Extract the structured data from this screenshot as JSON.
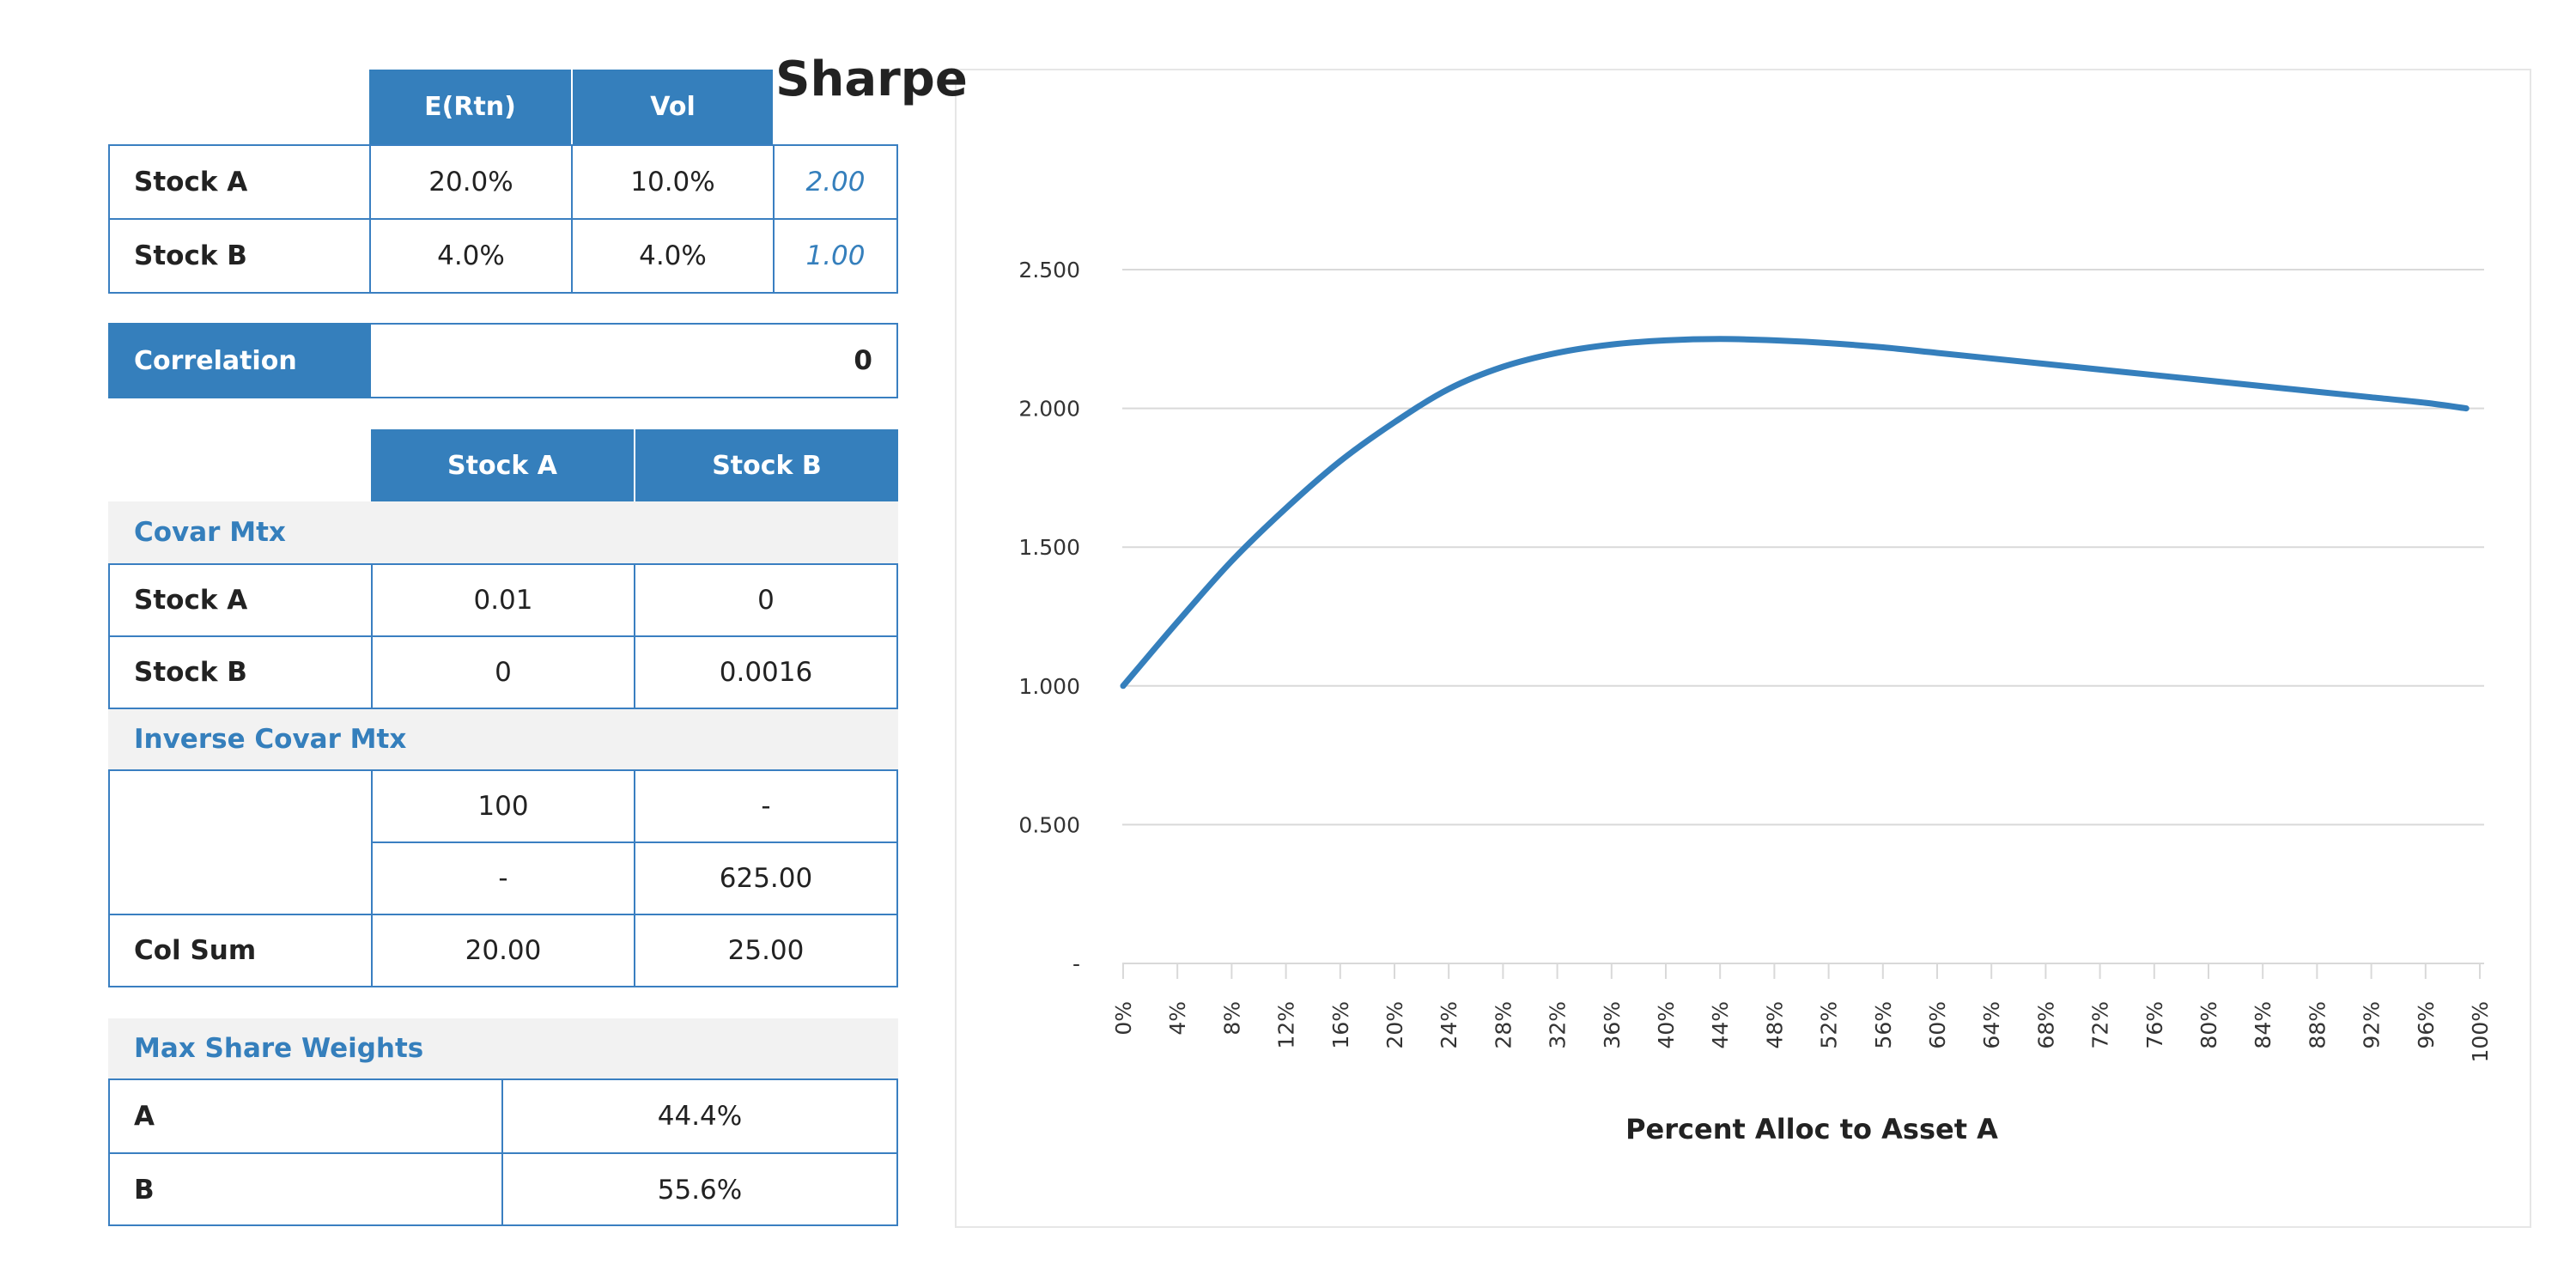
{
  "assets_table": {
    "headers": [
      "E(Rtn)",
      "Vol"
    ],
    "rows": [
      {
        "name": "Stock A",
        "ertn": "20.0%",
        "vol": "10.0%",
        "ratio": "2.00"
      },
      {
        "name": "Stock B",
        "ertn": "4.0%",
        "vol": "4.0%",
        "ratio": "1.00"
      }
    ]
  },
  "correlation": {
    "label": "Correlation",
    "value": "0"
  },
  "matrix_headers": [
    "Stock A",
    "Stock B"
  ],
  "covar": {
    "title": "Covar Mtx",
    "rows": [
      {
        "name": "Stock A",
        "a": "0.01",
        "b": "0"
      },
      {
        "name": "Stock B",
        "a": "0",
        "b": "0.0016"
      }
    ]
  },
  "inverse_covar": {
    "title": "Inverse Covar Mtx",
    "rows": [
      {
        "a": "100",
        "b": "-"
      },
      {
        "a": "-",
        "b": "625.00"
      }
    ],
    "col_sum": {
      "label": "Col Sum",
      "a": "20.00",
      "b": "25.00"
    }
  },
  "max_share": {
    "title": "Max Share Weights",
    "rows": [
      {
        "name": "A",
        "value": "44.4%"
      },
      {
        "name": "B",
        "value": "55.6%"
      }
    ]
  },
  "colors": {
    "accent": "#357fbc",
    "grid": "#d9d9d9",
    "section_bg": "#f2f2f2"
  },
  "chart_data": {
    "type": "line",
    "title": "Sharpe",
    "xlabel": "Percent Alloc to Asset A",
    "ylabel": "",
    "ylim": [
      0,
      2.5
    ],
    "y_ticks": [
      0,
      0.5,
      1.0,
      1.5,
      2.0,
      2.5
    ],
    "y_tick_labels": [
      "-",
      "0.500",
      "1.000",
      "1.500",
      "2.000",
      "2.500"
    ],
    "x_tick_labels": [
      "0%",
      "4%",
      "8%",
      "12%",
      "16%",
      "20%",
      "24%",
      "28%",
      "32%",
      "36%",
      "40%",
      "44%",
      "48%",
      "52%",
      "56%",
      "60%",
      "64%",
      "68%",
      "72%",
      "76%",
      "80%",
      "84%",
      "88%",
      "92%",
      "96%",
      "100%"
    ],
    "grid": true,
    "legend": "none",
    "series": [
      {
        "color": "#357fbc",
        "x": [
          0,
          4,
          8,
          12,
          16,
          20,
          24,
          28,
          32,
          36,
          40,
          44,
          48,
          52,
          56,
          60,
          64,
          68,
          72,
          76,
          80,
          84,
          88,
          92,
          96,
          99
        ],
        "values": [
          1.0,
          1.23,
          1.45,
          1.64,
          1.81,
          1.95,
          2.07,
          2.15,
          2.2,
          2.23,
          2.245,
          2.25,
          2.245,
          2.235,
          2.22,
          2.2,
          2.18,
          2.16,
          2.14,
          2.12,
          2.1,
          2.08,
          2.06,
          2.04,
          2.02,
          2.0
        ]
      }
    ]
  }
}
